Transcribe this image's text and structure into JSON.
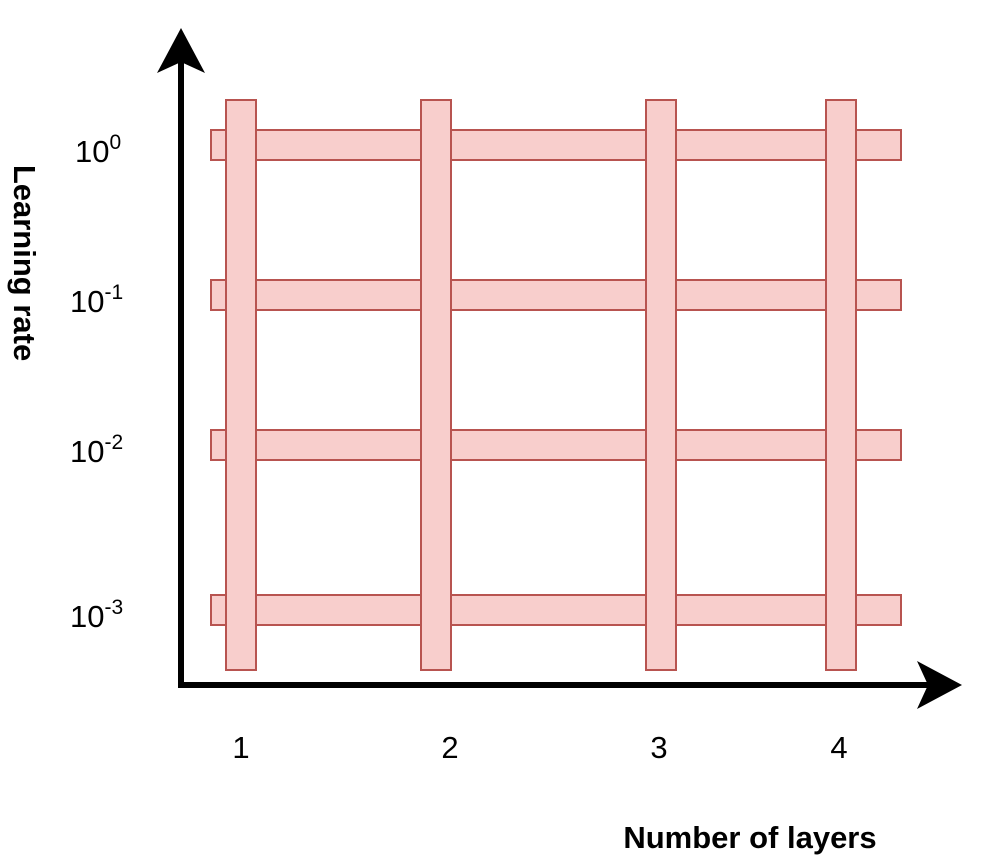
{
  "axes": {
    "x_label": "Number of layers",
    "y_label": "Learning rate"
  },
  "x_ticks": [
    {
      "label": "1"
    },
    {
      "label": "2"
    },
    {
      "label": "3"
    },
    {
      "label": "4"
    }
  ],
  "y_ticks": [
    {
      "base": "10",
      "exponent": "0"
    },
    {
      "base": "10",
      "exponent": "-1"
    },
    {
      "base": "10",
      "exponent": "-2"
    },
    {
      "base": "10",
      "exponent": "-3"
    }
  ],
  "colors": {
    "bar_fill": "#f8cecc",
    "bar_stroke": "#b85450",
    "axis": "#000000"
  }
}
